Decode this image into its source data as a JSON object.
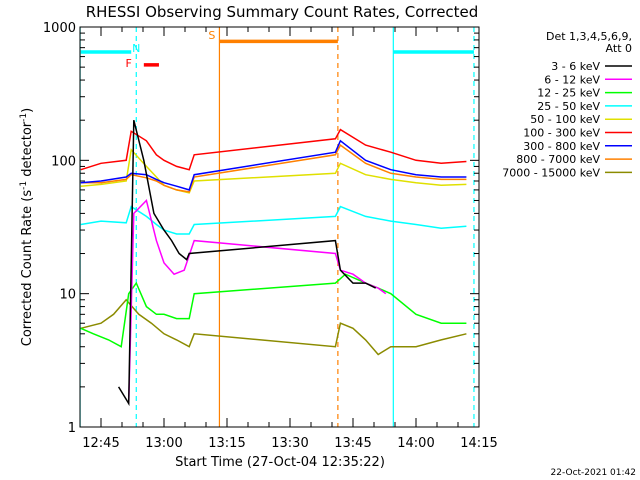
{
  "chart_data": {
    "type": "line",
    "title": "RHESSI Observing Summary Count Rates, Corrected",
    "xlabel": "Start Time (27-Oct-04 12:35:22)",
    "ylabel_main": "Corrected Count Rate (s",
    "ylabel_exp1": "-1",
    "ylabel_mid": " detector",
    "ylabel_exp2": "-1",
    "ylabel_end": ")",
    "yscale": "log",
    "ylim": [
      1,
      1000
    ],
    "xlim": [
      12.6667,
      14.25
    ],
    "yticks": [
      {
        "value": 1,
        "label": "1"
      },
      {
        "value": 10,
        "label": "10"
      },
      {
        "value": 100,
        "label": "100"
      },
      {
        "value": 1000,
        "label": "1000"
      }
    ],
    "xticks": [
      {
        "value": 12.75,
        "label": "12:45"
      },
      {
        "value": 13.0,
        "label": "13:00"
      },
      {
        "value": 13.25,
        "label": "13:15"
      },
      {
        "value": 13.5,
        "label": "13:30"
      },
      {
        "value": 13.75,
        "label": "13:45"
      },
      {
        "value": 14.0,
        "label": "14:00"
      },
      {
        "value": 14.25,
        "label": "14:15"
      }
    ],
    "legend": {
      "header1": "Det 1,3,4,5,6,9,",
      "header2": "Att 0",
      "placement": "right",
      "entries": [
        {
          "label": "3 - 6 keV",
          "color": "#000000"
        },
        {
          "label": "6 - 12 keV",
          "color": "#ff00ff"
        },
        {
          "label": "12 - 25 keV",
          "color": "#00ff00"
        },
        {
          "label": "25 - 50 keV",
          "color": "#00ffff"
        },
        {
          "label": "50 - 100 keV",
          "color": "#e0e000"
        },
        {
          "label": "100 - 300 keV",
          "color": "#ff0000"
        },
        {
          "label": "300 - 800 keV",
          "color": "#0000ff"
        },
        {
          "label": "800 - 7000 keV",
          "color": "#ff8000"
        },
        {
          "label": "7000 - 15000 keV",
          "color": "#8b8b00"
        }
      ]
    },
    "series": [
      {
        "band": "25 - 50 keV",
        "color": "#00ffff",
        "x": [
          12.67,
          12.75,
          12.85,
          12.87,
          12.93,
          12.97,
          13.0,
          13.05,
          13.1,
          13.12,
          13.68,
          13.7,
          13.8,
          13.9,
          14.0,
          14.1,
          14.2
        ],
        "y": [
          33,
          35,
          34,
          45,
          38,
          33,
          30,
          28,
          28,
          33,
          38,
          45,
          38,
          35,
          33,
          31,
          32
        ]
      },
      {
        "band": "50 - 100 keV",
        "color": "#e0e000",
        "x": [
          12.67,
          12.75,
          12.85,
          12.87,
          12.93,
          12.97,
          13.0,
          13.05,
          13.1,
          13.12,
          13.68,
          13.7,
          13.8,
          13.9,
          14.0,
          14.1,
          14.2
        ],
        "y": [
          64,
          66,
          70,
          120,
          90,
          75,
          65,
          60,
          57,
          70,
          80,
          95,
          78,
          72,
          68,
          65,
          66
        ]
      },
      {
        "band": "800 - 7000 keV",
        "color": "#ff8000",
        "x": [
          12.67,
          12.75,
          12.85,
          12.87,
          12.93,
          12.97,
          13.0,
          13.05,
          13.1,
          13.12,
          13.68,
          13.7,
          13.8,
          13.9,
          14.0,
          14.1,
          14.2
        ],
        "y": [
          68,
          68,
          72,
          78,
          74,
          70,
          65,
          60,
          58,
          75,
          110,
          130,
          95,
          80,
          75,
          72,
          72
        ]
      },
      {
        "band": "300 - 800 keV",
        "color": "#0000ff",
        "x": [
          12.67,
          12.75,
          12.85,
          12.87,
          12.93,
          12.97,
          13.0,
          13.05,
          13.1,
          13.12,
          13.68,
          13.7,
          13.8,
          13.9,
          14.0,
          14.1,
          14.2
        ],
        "y": [
          68,
          70,
          75,
          80,
          78,
          72,
          68,
          64,
          60,
          78,
          115,
          140,
          100,
          85,
          78,
          75,
          75
        ]
      },
      {
        "band": "100 - 300 keV",
        "color": "#ff0000",
        "x": [
          12.67,
          12.75,
          12.85,
          12.87,
          12.93,
          12.97,
          13.0,
          13.05,
          13.1,
          13.12,
          13.68,
          13.7,
          13.8,
          13.9,
          14.0,
          14.1,
          14.2
        ],
        "y": [
          85,
          95,
          100,
          165,
          140,
          110,
          100,
          90,
          85,
          110,
          145,
          170,
          130,
          115,
          100,
          95,
          98
        ]
      },
      {
        "band": "7000 - 15000 keV",
        "color": "#8b8b00",
        "x": [
          12.67,
          12.75,
          12.8,
          12.85,
          12.9,
          12.95,
          13.0,
          13.05,
          13.1,
          13.12,
          13.68,
          13.7,
          13.75,
          13.8,
          13.85,
          13.9,
          14.0,
          14.1,
          14.2
        ],
        "y": [
          5.5,
          6,
          7,
          9,
          7,
          6,
          5,
          4.5,
          4,
          5,
          4,
          6,
          5.5,
          4.5,
          3.5,
          4,
          4,
          4.5,
          5
        ]
      },
      {
        "band": "12 - 25 keV",
        "color": "#00ff00",
        "x": [
          12.67,
          12.72,
          12.78,
          12.83,
          12.86,
          12.89,
          12.93,
          12.97,
          13.0,
          13.05,
          13.1,
          13.12,
          13.68,
          13.72,
          13.8,
          13.85,
          13.9,
          14.0,
          14.1,
          14.2
        ],
        "y": [
          5.5,
          5,
          4.5,
          4,
          10,
          12,
          8,
          7,
          7,
          6.5,
          6.5,
          10,
          12,
          14,
          12,
          11,
          10,
          7,
          6,
          6
        ]
      },
      {
        "band": "6 - 12 keV",
        "color": "#ff00ff",
        "x": [
          12.86,
          12.88,
          12.93,
          12.97,
          13.0,
          13.04,
          13.08,
          13.12,
          13.68,
          13.7,
          13.75,
          13.8,
          13.85,
          13.88
        ],
        "y": [
          1.5,
          40,
          50,
          25,
          17,
          14,
          15,
          25,
          20,
          15,
          14,
          12,
          11,
          10
        ]
      },
      {
        "band": "3 - 6 keV",
        "color": "#000000",
        "x": [
          12.82,
          12.86,
          12.88,
          12.92,
          12.96,
          13.0,
          13.03,
          13.06,
          13.09,
          13.1,
          13.68,
          13.7,
          13.75,
          13.8,
          13.84
        ],
        "y": [
          2,
          1.5,
          200,
          100,
          40,
          30,
          25,
          20,
          18,
          20,
          25,
          15,
          12,
          12,
          11
        ]
      }
    ],
    "annotations": [
      {
        "label": "N",
        "color": "#00ffff",
        "x": 12.89,
        "y": 650
      },
      {
        "label": "F",
        "color": "#ff0000",
        "x": 12.86,
        "y": 500
      },
      {
        "label": "S",
        "color": "#ff8000",
        "x": 13.19,
        "y": 810
      }
    ],
    "state_bars": [
      {
        "name": "night",
        "color": "#00ffff",
        "ranges": [
          [
            12.67,
            12.87
          ],
          [
            13.91,
            14.23
          ]
        ],
        "y": 650
      },
      {
        "name": "flare",
        "color": "#ff0000",
        "ranges": [
          [
            12.92,
            12.98
          ]
        ],
        "y": 520
      },
      {
        "name": "saa",
        "color": "#ff8000",
        "ranges": [
          [
            13.22,
            13.69
          ]
        ],
        "y": 780
      }
    ],
    "vlines": [
      {
        "x": 12.667,
        "color": "#00ffff",
        "style": "solid"
      },
      {
        "x": 12.89,
        "color": "#00ffff",
        "style": "dashed"
      },
      {
        "x": 13.22,
        "color": "#ff8000",
        "style": "solid"
      },
      {
        "x": 13.69,
        "color": "#ff8000",
        "style": "dashed"
      },
      {
        "x": 13.91,
        "color": "#00ffff",
        "style": "solid"
      },
      {
        "x": 14.23,
        "color": "#00ffff",
        "style": "dashed"
      }
    ]
  },
  "footer": {
    "timestamp": "22-Oct-2021 01:42"
  }
}
